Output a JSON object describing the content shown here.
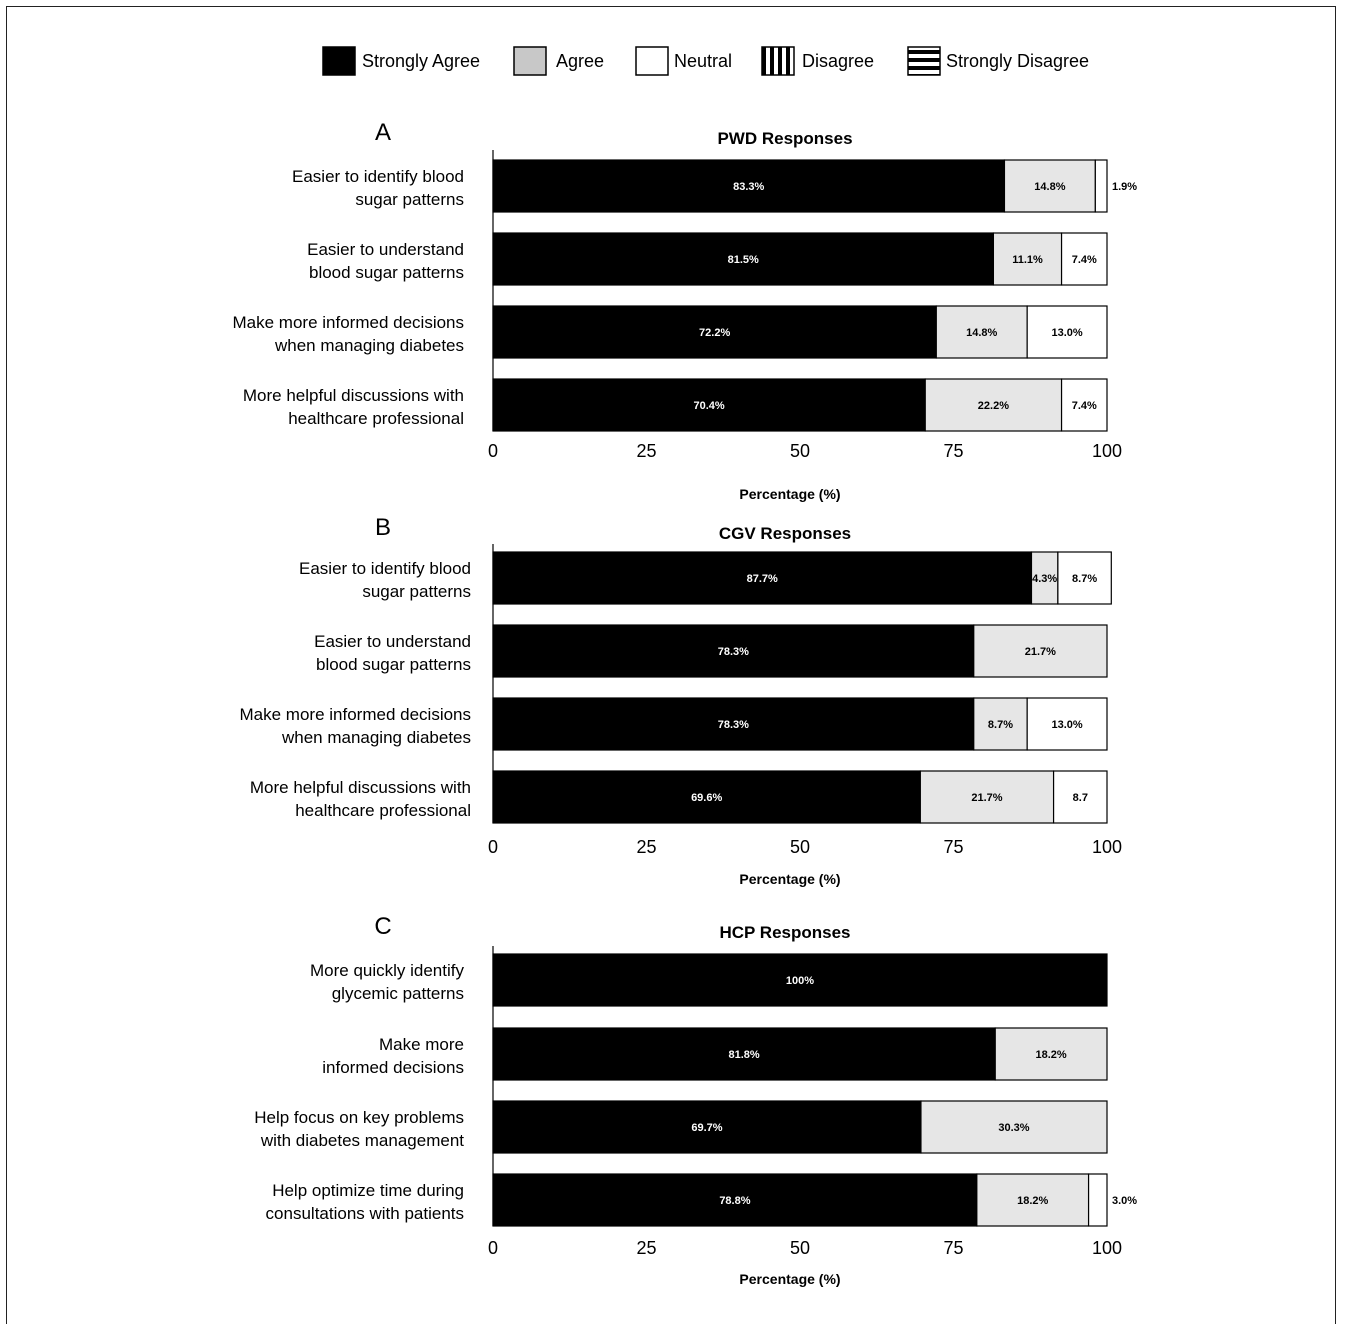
{
  "legend": [
    {
      "label": "Strongly Agree",
      "pattern": "solid-black"
    },
    {
      "label": "Agree",
      "pattern": "solid-gray"
    },
    {
      "label": "Neutral",
      "pattern": "white"
    },
    {
      "label": "Disagree",
      "pattern": "vertical-stripes"
    },
    {
      "label": "Strongly Disagree",
      "pattern": "horizontal-stripes"
    }
  ],
  "colors": {
    "strongly_agree": "#000000",
    "agree": "#e6e6e6",
    "neutral": "#ffffff",
    "outline": "#000000"
  },
  "chart_data": [
    {
      "type": "bar",
      "orientation": "horizontal-stacked",
      "panel": "A",
      "title": "PWD Responses",
      "xlabel": "Percentage (%)",
      "xlim": [
        0,
        100
      ],
      "xticks": [
        "0",
        "25",
        "50",
        "75",
        "100"
      ],
      "categories": [
        [
          "Easier to identify blood",
          "sugar patterns"
        ],
        [
          "Easier to understand",
          "blood sugar patterns"
        ],
        [
          "Make more informed decisions",
          "when managing diabetes"
        ],
        [
          "More helpful discussions with",
          "healthcare professional"
        ]
      ],
      "series": [
        {
          "name": "Strongly Agree",
          "values": [
            83.3,
            81.5,
            72.2,
            70.4
          ],
          "labels": [
            "83.3%",
            "81.5%",
            "72.2%",
            "70.4%"
          ]
        },
        {
          "name": "Agree",
          "values": [
            14.8,
            11.1,
            14.8,
            22.2
          ],
          "labels": [
            "14.8%",
            "11.1%",
            "14.8%",
            "22.2%"
          ]
        },
        {
          "name": "Neutral",
          "values": [
            1.9,
            7.4,
            13.0,
            7.4
          ],
          "labels": [
            "1.9%",
            "7.4%",
            "13.0%",
            "7.4%"
          ]
        }
      ]
    },
    {
      "type": "bar",
      "orientation": "horizontal-stacked",
      "panel": "B",
      "title": "CGV Responses",
      "xlabel": "Percentage (%)",
      "xlim": [
        0,
        100
      ],
      "xticks": [
        "0",
        "25",
        "50",
        "75",
        "100"
      ],
      "categories": [
        [
          "Easier to identify blood",
          "sugar patterns"
        ],
        [
          "Easier to understand",
          "blood sugar patterns"
        ],
        [
          "Make more informed decisions",
          "when managing diabetes"
        ],
        [
          "More helpful discussions with",
          "healthcare professional"
        ]
      ],
      "series": [
        {
          "name": "Strongly Agree",
          "values": [
            87.7,
            78.3,
            78.3,
            69.6
          ],
          "labels": [
            "87.7%",
            "78.3%",
            "78.3%",
            "69.6%"
          ]
        },
        {
          "name": "Agree",
          "values": [
            4.3,
            21.7,
            8.7,
            21.7
          ],
          "labels": [
            "4.3%",
            "21.7%",
            "8.7%",
            "21.7%"
          ]
        },
        {
          "name": "Neutral",
          "values": [
            8.7,
            0,
            13.0,
            8.7
          ],
          "labels": [
            "8.7%",
            "",
            "13.0%",
            "8.7"
          ]
        }
      ]
    },
    {
      "type": "bar",
      "orientation": "horizontal-stacked",
      "panel": "C",
      "title": "HCP Responses",
      "xlabel": "Percentage (%)",
      "xlim": [
        0,
        100
      ],
      "xticks": [
        "0",
        "25",
        "50",
        "75",
        "100"
      ],
      "categories": [
        [
          "More quickly identify",
          "glycemic patterns"
        ],
        [
          "Make more",
          "informed decisions"
        ],
        [
          "Help focus on key problems",
          "with diabetes management"
        ],
        [
          "Help optimize time during",
          "consultations with patients"
        ]
      ],
      "series": [
        {
          "name": "Strongly Agree",
          "values": [
            100,
            81.8,
            69.7,
            78.8
          ],
          "labels": [
            "100%",
            "81.8%",
            "69.7%",
            "78.8%"
          ]
        },
        {
          "name": "Agree",
          "values": [
            0,
            18.2,
            30.3,
            18.2
          ],
          "labels": [
            "",
            "18.2%",
            "30.3%",
            "18.2%"
          ]
        },
        {
          "name": "Neutral",
          "values": [
            0,
            0,
            0,
            3.0
          ],
          "labels": [
            "",
            "",
            "",
            "3.0%"
          ]
        }
      ]
    }
  ]
}
